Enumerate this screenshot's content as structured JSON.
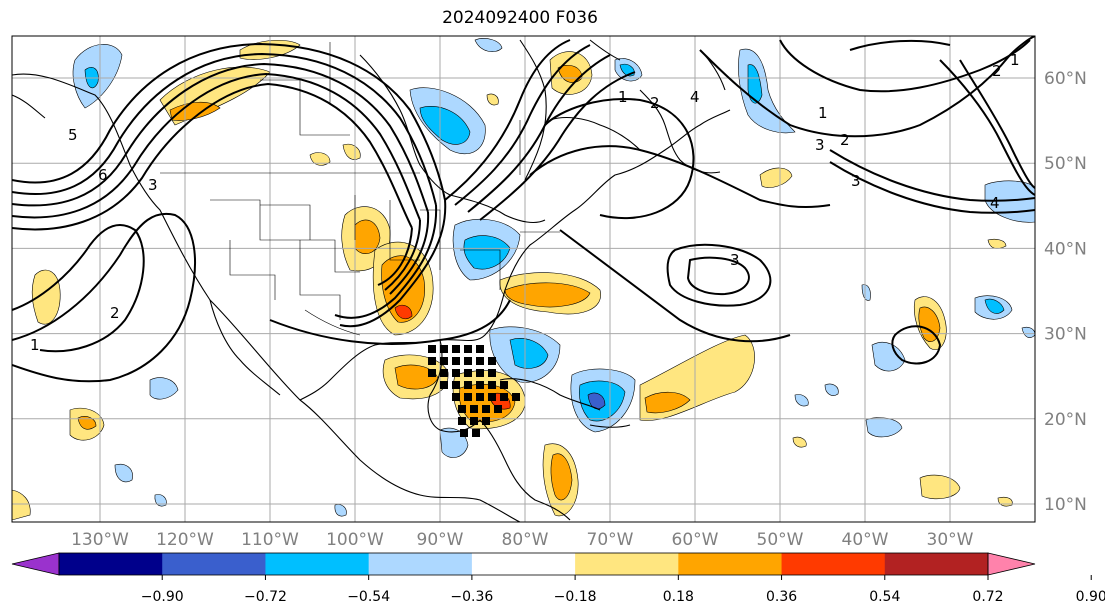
{
  "title": "2024092400 F036",
  "longitude_labels": [
    "130°W",
    "120°W",
    "110°W",
    "100°W",
    "90°W",
    "80°W",
    "70°W",
    "60°W",
    "50°W",
    "40°W",
    "30°W"
  ],
  "latitude_labels": [
    "60°N",
    "50°N",
    "40°N",
    "30°N",
    "20°N",
    "10°N"
  ],
  "colorbar": {
    "ticks": [
      "−0.90",
      "−0.72",
      "−0.54",
      "−0.36",
      "−0.18",
      "0.18",
      "0.36",
      "0.54",
      "0.72",
      "0.90"
    ],
    "colors": [
      "#9a32cd",
      "#00008b",
      "#3a5fcd",
      "#00bfff",
      "#add8ff",
      "#ffffff",
      "#ffe680",
      "#ffa500",
      "#ff3a00",
      "#b22222",
      "#ff82ab"
    ]
  },
  "contour_labels": [
    "1",
    "2",
    "3",
    "1",
    "2",
    "3",
    "1",
    "2",
    "3",
    "4",
    "5",
    "6",
    "1",
    "2",
    "3",
    "4"
  ],
  "colors": {
    "warm_light": "#ffe680",
    "warm_mid": "#ffa500",
    "warm_strong": "#ff3a00",
    "cool_light": "#add8ff",
    "cool_mid": "#00bfff",
    "cool_strong": "#3a5fcd",
    "grid": "#aaaaaa"
  }
}
